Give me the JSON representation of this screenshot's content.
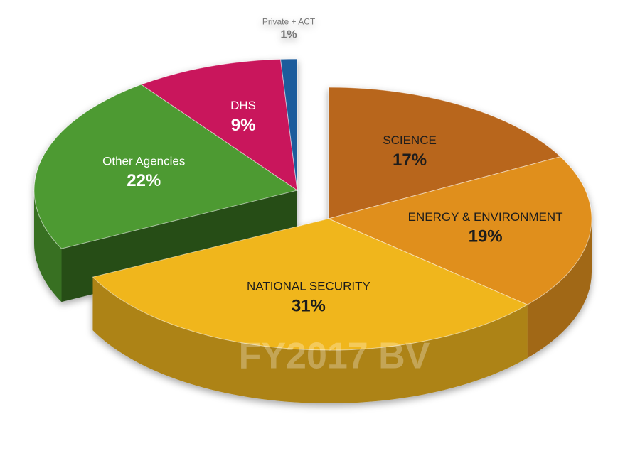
{
  "chart_data": {
    "type": "pie",
    "categories": [
      "SCIENCE",
      "ENERGY & ENVIRONMENT",
      "NATIONAL SECURITY",
      "Other Agencies",
      "DHS",
      "Private + ACT"
    ],
    "values": [
      17,
      19,
      31,
      22,
      9,
      1
    ],
    "value_labels": [
      "17%",
      "19%",
      "31%",
      "22%",
      "9%",
      "1%"
    ],
    "colors": [
      "#b8661f",
      "#e08f1c",
      "#f0b61a",
      "#4d9a32",
      "#c9195b",
      "#1b5c9c"
    ],
    "watermark": "FY2017 BV"
  }
}
